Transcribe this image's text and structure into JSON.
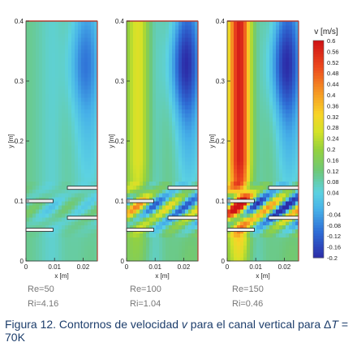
{
  "chart_data": {
    "type": "heatmap",
    "colorbar": {
      "title": "v [m/s]",
      "ticks": [
        "0.6",
        "0.56",
        "0.52",
        "0.48",
        "0.44",
        "0.4",
        "0.36",
        "0.32",
        "0.28",
        "0.24",
        "0.2",
        "0.16",
        "0.12",
        "0.08",
        "0.04",
        "0",
        "-0.04",
        "-0.08",
        "-0.12",
        "-0.16",
        "-0.2"
      ],
      "range": [
        -0.2,
        0.6
      ]
    },
    "x_axis": {
      "label": "x [m]",
      "ticks": [
        "0",
        "0.01",
        "0.02"
      ],
      "range": [
        0,
        0.025
      ]
    },
    "y_axis": {
      "label": "y [m]",
      "ticks": [
        "0",
        "0.1",
        "0.2",
        "0.3",
        "0.4"
      ],
      "range": [
        0,
        0.4
      ]
    },
    "panels": [
      {
        "re_label": "Re=50",
        "ri_label": "Ri=4.16",
        "max_velocity": 0.32
      },
      {
        "re_label": "Re=100",
        "ri_label": "Ri=1.04",
        "max_velocity": 0.44
      },
      {
        "re_label": "Re=150",
        "ri_label": "Ri=0.46",
        "max_velocity": 0.6
      }
    ]
  },
  "caption": {
    "prefix": "Figura 12.  Contornos de velocidad ",
    "var": "v",
    "middle": " para el canal vertical para Δ",
    "var2": "T",
    "suffix": " = 70K"
  },
  "colors": {
    "axis_top": "#b03a2e",
    "caption": "#1c3d6b"
  }
}
